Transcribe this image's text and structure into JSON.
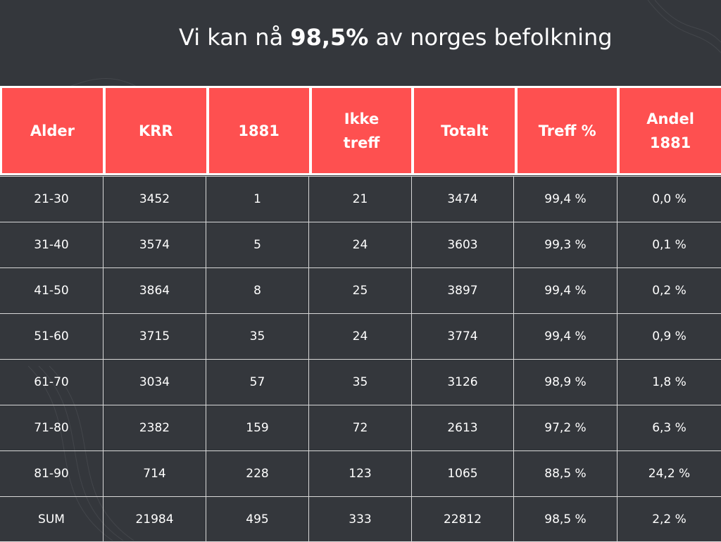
{
  "title": {
    "prefix": "Vi kan nå ",
    "highlight": "98,5%",
    "suffix": " av norges befolkning"
  },
  "table": {
    "headers": [
      "Alder",
      "KRR",
      "1881",
      "Ikke treff",
      "Totalt",
      "Treff %",
      "Andel 1881"
    ],
    "rows": [
      [
        "21-30",
        "3452",
        "1",
        "21",
        "3474",
        "99,4 %",
        "0,0 %"
      ],
      [
        "31-40",
        "3574",
        "5",
        "24",
        "3603",
        "99,3 %",
        "0,1 %"
      ],
      [
        "41-50",
        "3864",
        "8",
        "25",
        "3897",
        "99,4 %",
        "0,2 %"
      ],
      [
        "51-60",
        "3715",
        "35",
        "24",
        "3774",
        "99,4 %",
        "0,9 %"
      ],
      [
        "61-70",
        "3034",
        "57",
        "35",
        "3126",
        "98,9 %",
        "1,8 %"
      ],
      [
        "71-80",
        "2382",
        "159",
        "72",
        "2613",
        "97,2 %",
        "6,3 %"
      ],
      [
        "81-90",
        "714",
        "228",
        "123",
        "1065",
        "88,5 %",
        "24,2 %"
      ],
      [
        "SUM",
        "21984",
        "495",
        "333",
        "22812",
        "98,5 %",
        "2,2 %"
      ]
    ]
  },
  "colors": {
    "background": "#34373c",
    "header": "#fe5050",
    "text": "#ffffff",
    "grid_lines": "#d8d8d8"
  }
}
